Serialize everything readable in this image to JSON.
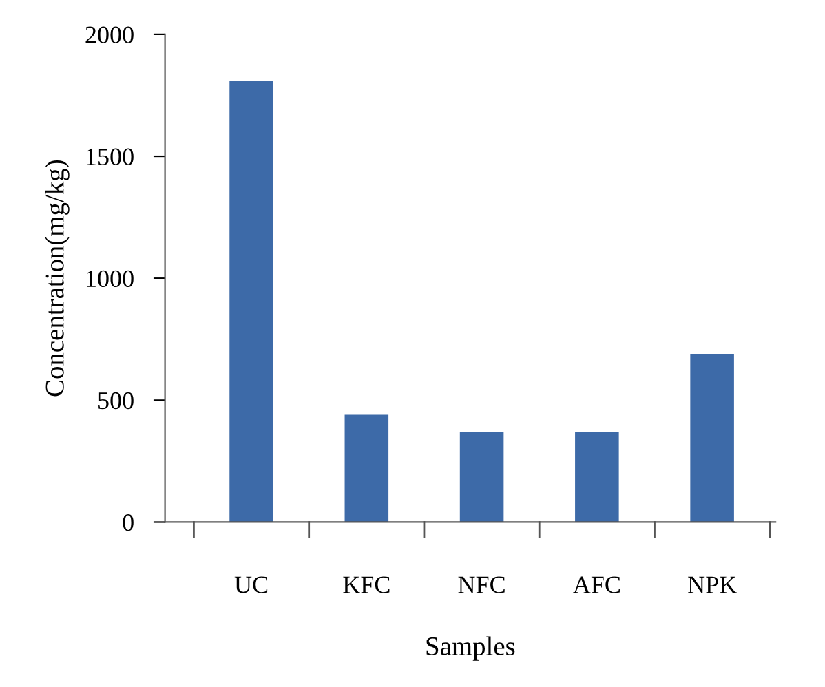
{
  "chart_data": {
    "type": "bar",
    "xlabel": "Samples",
    "ylabel": "Concentration(mg/kg)",
    "categories": [
      "UC",
      "KFC",
      "NFC",
      "AFC",
      "NPK"
    ],
    "values": [
      1810,
      440,
      370,
      370,
      690
    ],
    "color": "#3d6aa8",
    "ylim": [
      0,
      2000
    ],
    "yticks": [
      0,
      500,
      1000,
      1500,
      2000
    ],
    "grid": false
  }
}
